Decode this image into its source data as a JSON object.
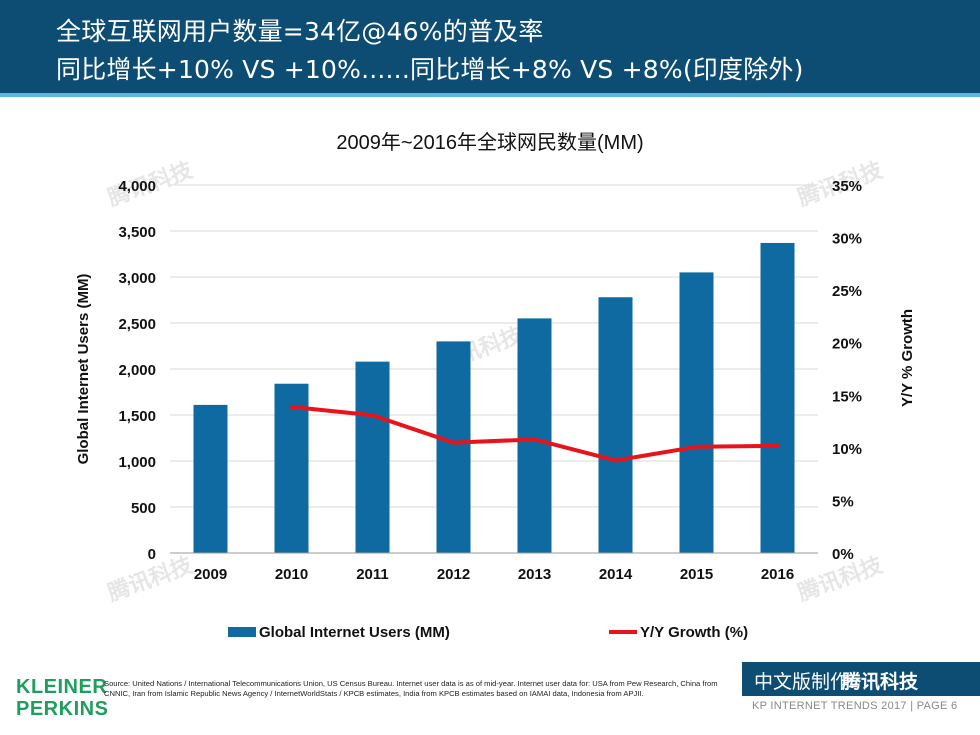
{
  "header": {
    "line1": "全球互联网用户数量=34亿@46%的普及率",
    "line2": "同比增长+10% VS +10%......同比增长+8% VS +8%(印度除外)"
  },
  "chart_data": {
    "type": "bar",
    "title": "2009年~2016年全球网民数量(MM)",
    "categories": [
      "2009",
      "2010",
      "2011",
      "2012",
      "2013",
      "2014",
      "2015",
      "2016"
    ],
    "series": [
      {
        "name": "Global Internet Users (MM)",
        "type": "bar",
        "axis": "left",
        "values": [
          1610,
          1840,
          2080,
          2300,
          2550,
          2780,
          3050,
          3370
        ]
      },
      {
        "name": "Y/Y Growth (%)",
        "type": "line",
        "axis": "right",
        "values": [
          null,
          13.9,
          13.1,
          10.5,
          10.8,
          8.8,
          10.1,
          10.2
        ]
      }
    ],
    "ylabel": "Global Internet Users (MM)",
    "ylabel_right": "Y/Y % Growth",
    "ylim": [
      0,
      4000
    ],
    "ylim_right": [
      0,
      35
    ],
    "yticks": [
      "0",
      "500",
      "1,000",
      "1,500",
      "2,000",
      "2,500",
      "3,000",
      "3,500",
      "4,000"
    ],
    "yticks_right": [
      "0%",
      "5%",
      "10%",
      "15%",
      "20%",
      "25%",
      "30%",
      "35%"
    ],
    "grid": true,
    "legend": "bottom",
    "colors": {
      "bar": "#0e6aa0",
      "line": "#e8141b",
      "grid": "#d9d9d9"
    }
  },
  "watermark": "腾讯科技",
  "footer": {
    "logo_line1": "KLEINER",
    "logo_line2": "PERKINS",
    "source": "Source: United Nations / International Telecommunications Union, US Census Bureau. Internet user data is as of mid-year. Internet user data for: USA from Pew Research, China from CNNIC, Iran from Islamic Republic News Agency / InternetWorldStats / KPCB estimates, India from KPCB estimates based on IAMAI data, Indonesia from APJII.",
    "badge_label": "中文版制作:",
    "badge_brand": "腾讯科技",
    "page_info": "KP INTERNET TRENDS 2017  |  PAGE 6"
  }
}
